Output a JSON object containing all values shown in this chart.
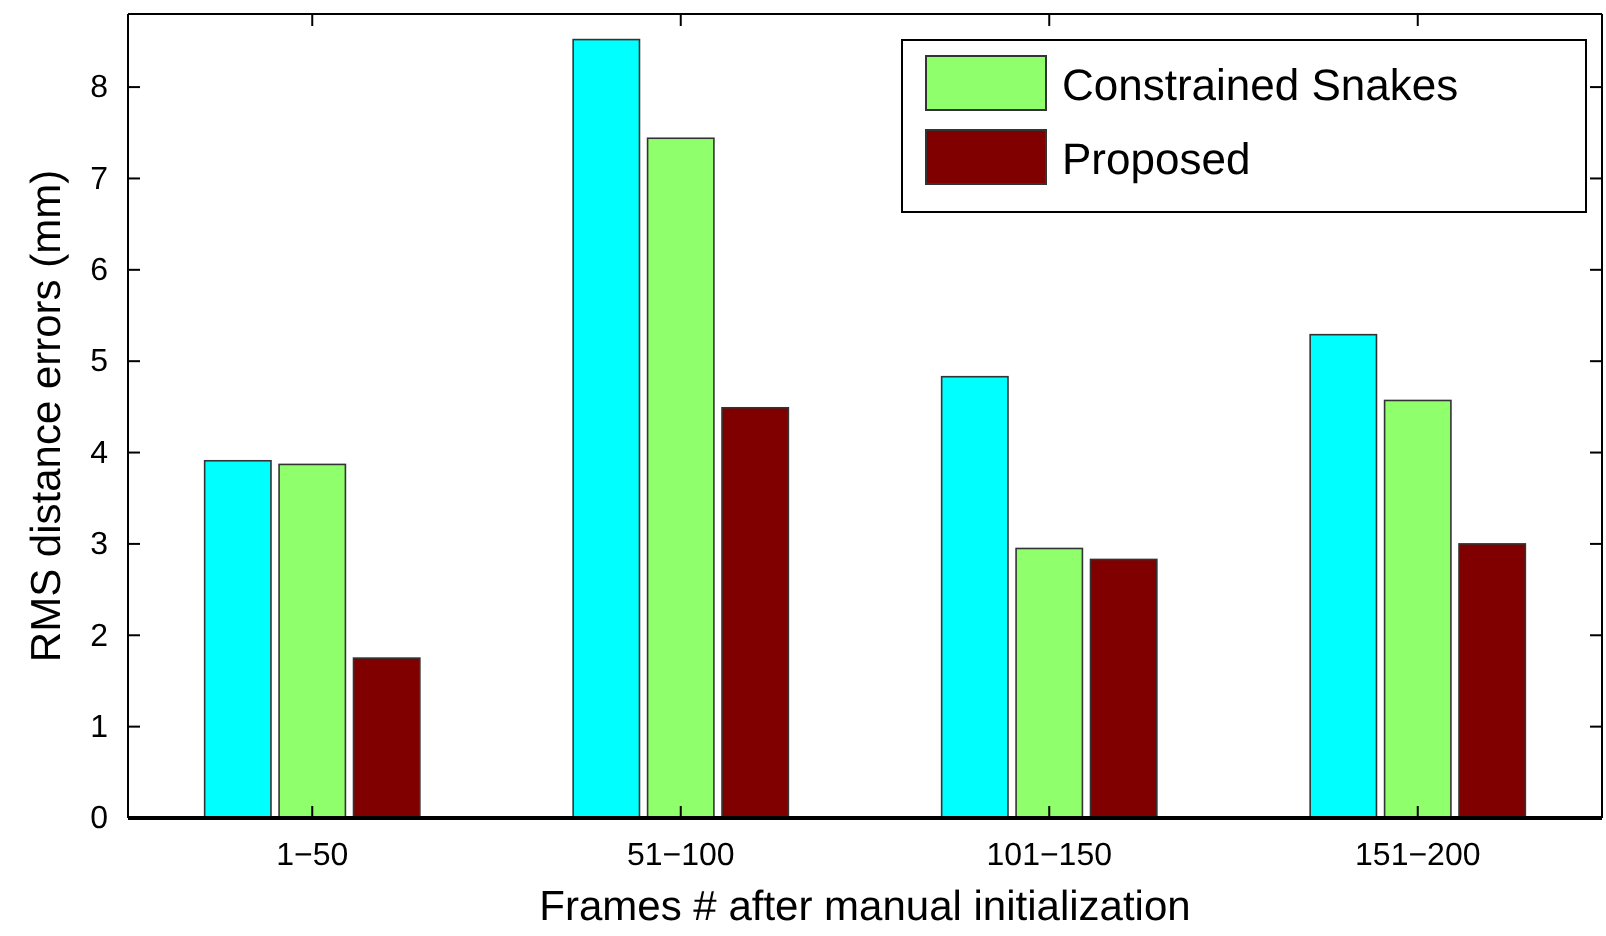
{
  "chart_data": {
    "type": "bar",
    "xlabel": "Frames # after manual initialization",
    "ylabel": "RMS distance errors (mm)",
    "categories": [
      "1−50",
      "51−100",
      "101−150",
      "151−200"
    ],
    "series": [
      {
        "color": "#00ffff",
        "values": [
          3.91,
          8.52,
          4.83,
          5.29
        ]
      },
      {
        "name": "Constrained Snakes",
        "color": "#90ff6c",
        "values": [
          3.87,
          7.44,
          2.95,
          4.57
        ]
      },
      {
        "name": "Proposed",
        "color": "#800000",
        "values": [
          1.75,
          4.49,
          2.83,
          3.0
        ]
      }
    ],
    "ylim": [
      0,
      8.8
    ],
    "yticks": [
      0,
      1,
      2,
      3,
      4,
      5,
      6,
      7,
      8
    ],
    "grid": false,
    "legend": "top right"
  }
}
